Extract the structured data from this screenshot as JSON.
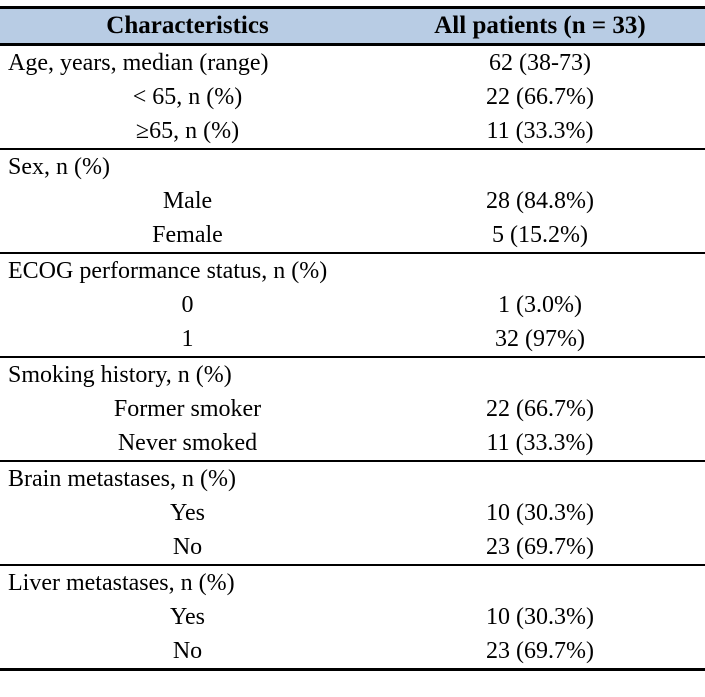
{
  "colors": {
    "header_bg": "#b8cce4",
    "border": "#000000",
    "text": "#000000"
  },
  "table": {
    "header": {
      "characteristics": "Characteristics",
      "all_patients": "All patients (n = 33)"
    },
    "sections": [
      {
        "name": "age",
        "rows": [
          {
            "label": "Age, years, median (range)",
            "value": "62 (38-73)"
          },
          {
            "label": "< 65, n (%)",
            "value": "22 (66.7%)"
          },
          {
            "label": "≥65, n (%)",
            "value": "11 (33.3%)"
          }
        ]
      },
      {
        "name": "sex",
        "rows": [
          {
            "label": "Sex, n (%)",
            "value": ""
          },
          {
            "label": "Male",
            "value": "28 (84.8%)"
          },
          {
            "label": "Female",
            "value": "5 (15.2%)"
          }
        ]
      },
      {
        "name": "ecog",
        "rows": [
          {
            "label": "ECOG performance status, n (%)",
            "value": ""
          },
          {
            "label": "0",
            "value": "1 (3.0%)"
          },
          {
            "label": "1",
            "value": "32 (97%)"
          }
        ]
      },
      {
        "name": "smoking",
        "rows": [
          {
            "label": "Smoking history, n (%)",
            "value": ""
          },
          {
            "label": "Former smoker",
            "value": "22 (66.7%)"
          },
          {
            "label": "Never smoked",
            "value": "11 (33.3%)"
          }
        ]
      },
      {
        "name": "brain-metastases",
        "rows": [
          {
            "label": "Brain metastases, n (%)",
            "value": ""
          },
          {
            "label": "Yes",
            "value": "10 (30.3%)"
          },
          {
            "label": "No",
            "value": "23 (69.7%)"
          }
        ]
      },
      {
        "name": "liver-metastases",
        "rows": [
          {
            "label": "Liver metastases, n (%)",
            "value": ""
          },
          {
            "label": "Yes",
            "value": "10 (30.3%)"
          },
          {
            "label": "No",
            "value": "23 (69.7%)"
          }
        ]
      }
    ]
  }
}
